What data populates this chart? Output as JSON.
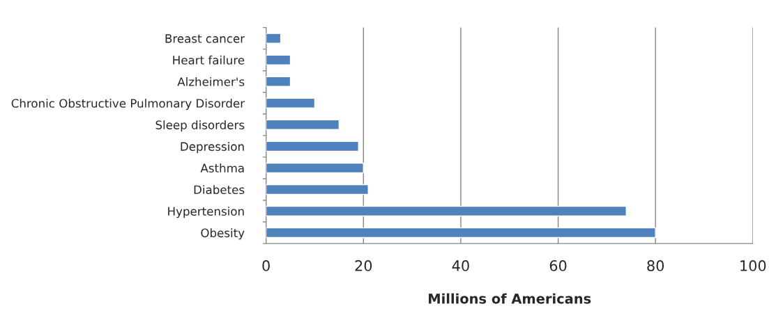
{
  "chart_data": {
    "type": "bar",
    "orientation": "horizontal",
    "xlabel": "Millions of Americans",
    "categories": [
      "Breast cancer",
      "Heart failure",
      "Alzheimer's",
      "Chronic Obstructive Pulmonary Disorder",
      "Sleep disorders",
      "Depression",
      "Asthma",
      "Diabetes",
      "Hypertension",
      "Obesity"
    ],
    "values": [
      3,
      5,
      5,
      10,
      15,
      19,
      20,
      21,
      74,
      80
    ],
    "color": "#4f81bd",
    "xlim": [
      0,
      100
    ],
    "xticks": [
      0,
      20,
      40,
      60,
      80,
      100
    ],
    "grid": "x",
    "legend": false
  }
}
